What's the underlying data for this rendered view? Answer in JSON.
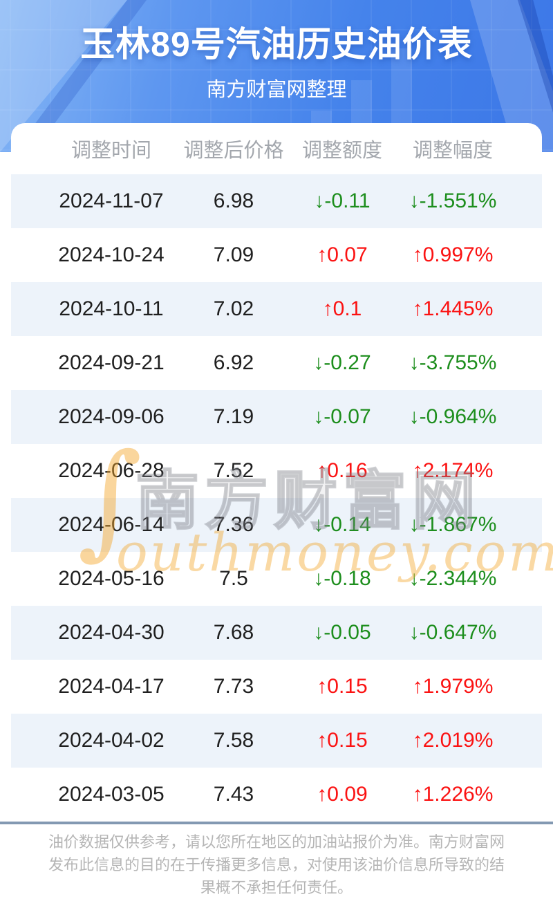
{
  "page": {
    "title": "玉林89号汽油历史油价表",
    "subtitle": "南方财富网整理"
  },
  "table": {
    "columns": [
      "调整时间",
      "调整后价格",
      "调整额度",
      "调整幅度"
    ],
    "arrows": {
      "up": "↑",
      "down": "↓"
    },
    "rows": [
      {
        "date": "2024-11-07",
        "price": "6.98",
        "change": "-0.11",
        "pct": "-1.551%",
        "direction": "down"
      },
      {
        "date": "2024-10-24",
        "price": "7.09",
        "change": "0.07",
        "pct": "0.997%",
        "direction": "up"
      },
      {
        "date": "2024-10-11",
        "price": "7.02",
        "change": "0.1",
        "pct": "1.445%",
        "direction": "up"
      },
      {
        "date": "2024-09-21",
        "price": "6.92",
        "change": "-0.27",
        "pct": "-3.755%",
        "direction": "down"
      },
      {
        "date": "2024-09-06",
        "price": "7.19",
        "change": "-0.07",
        "pct": "-0.964%",
        "direction": "down"
      },
      {
        "date": "2024-06-28",
        "price": "7.52",
        "change": "0.16",
        "pct": "2.174%",
        "direction": "up"
      },
      {
        "date": "2024-06-14",
        "price": "7.36",
        "change": "-0.14",
        "pct": "-1.867%",
        "direction": "down"
      },
      {
        "date": "2024-05-16",
        "price": "7.5",
        "change": "-0.18",
        "pct": "-2.344%",
        "direction": "down"
      },
      {
        "date": "2024-04-30",
        "price": "7.68",
        "change": "-0.05",
        "pct": "-0.647%",
        "direction": "down"
      },
      {
        "date": "2024-04-17",
        "price": "7.73",
        "change": "0.15",
        "pct": "1.979%",
        "direction": "up"
      },
      {
        "date": "2024-04-02",
        "price": "7.58",
        "change": "0.15",
        "pct": "2.019%",
        "direction": "up"
      },
      {
        "date": "2024-03-05",
        "price": "7.43",
        "change": "0.09",
        "pct": "1.226%",
        "direction": "up"
      }
    ]
  },
  "watermark": {
    "swoosh_glyph": "∫",
    "text_cn": "南方财富网",
    "text_en": "outhmoney.com"
  },
  "footer": {
    "disclaimer": "油价数据仅供参考，请以您所在地区的加油站报价为准。南方财富网发布此信息的目的在于传播更多信息，对使用该油价信息所导致的结果概不承担任何责任。"
  },
  "colors": {
    "up_red": "#fb1212",
    "down_green": "#1d8e1d",
    "hero_blue": "#4583eb",
    "stripe_bg": "#edf3fa",
    "divider": "#8399b2"
  }
}
